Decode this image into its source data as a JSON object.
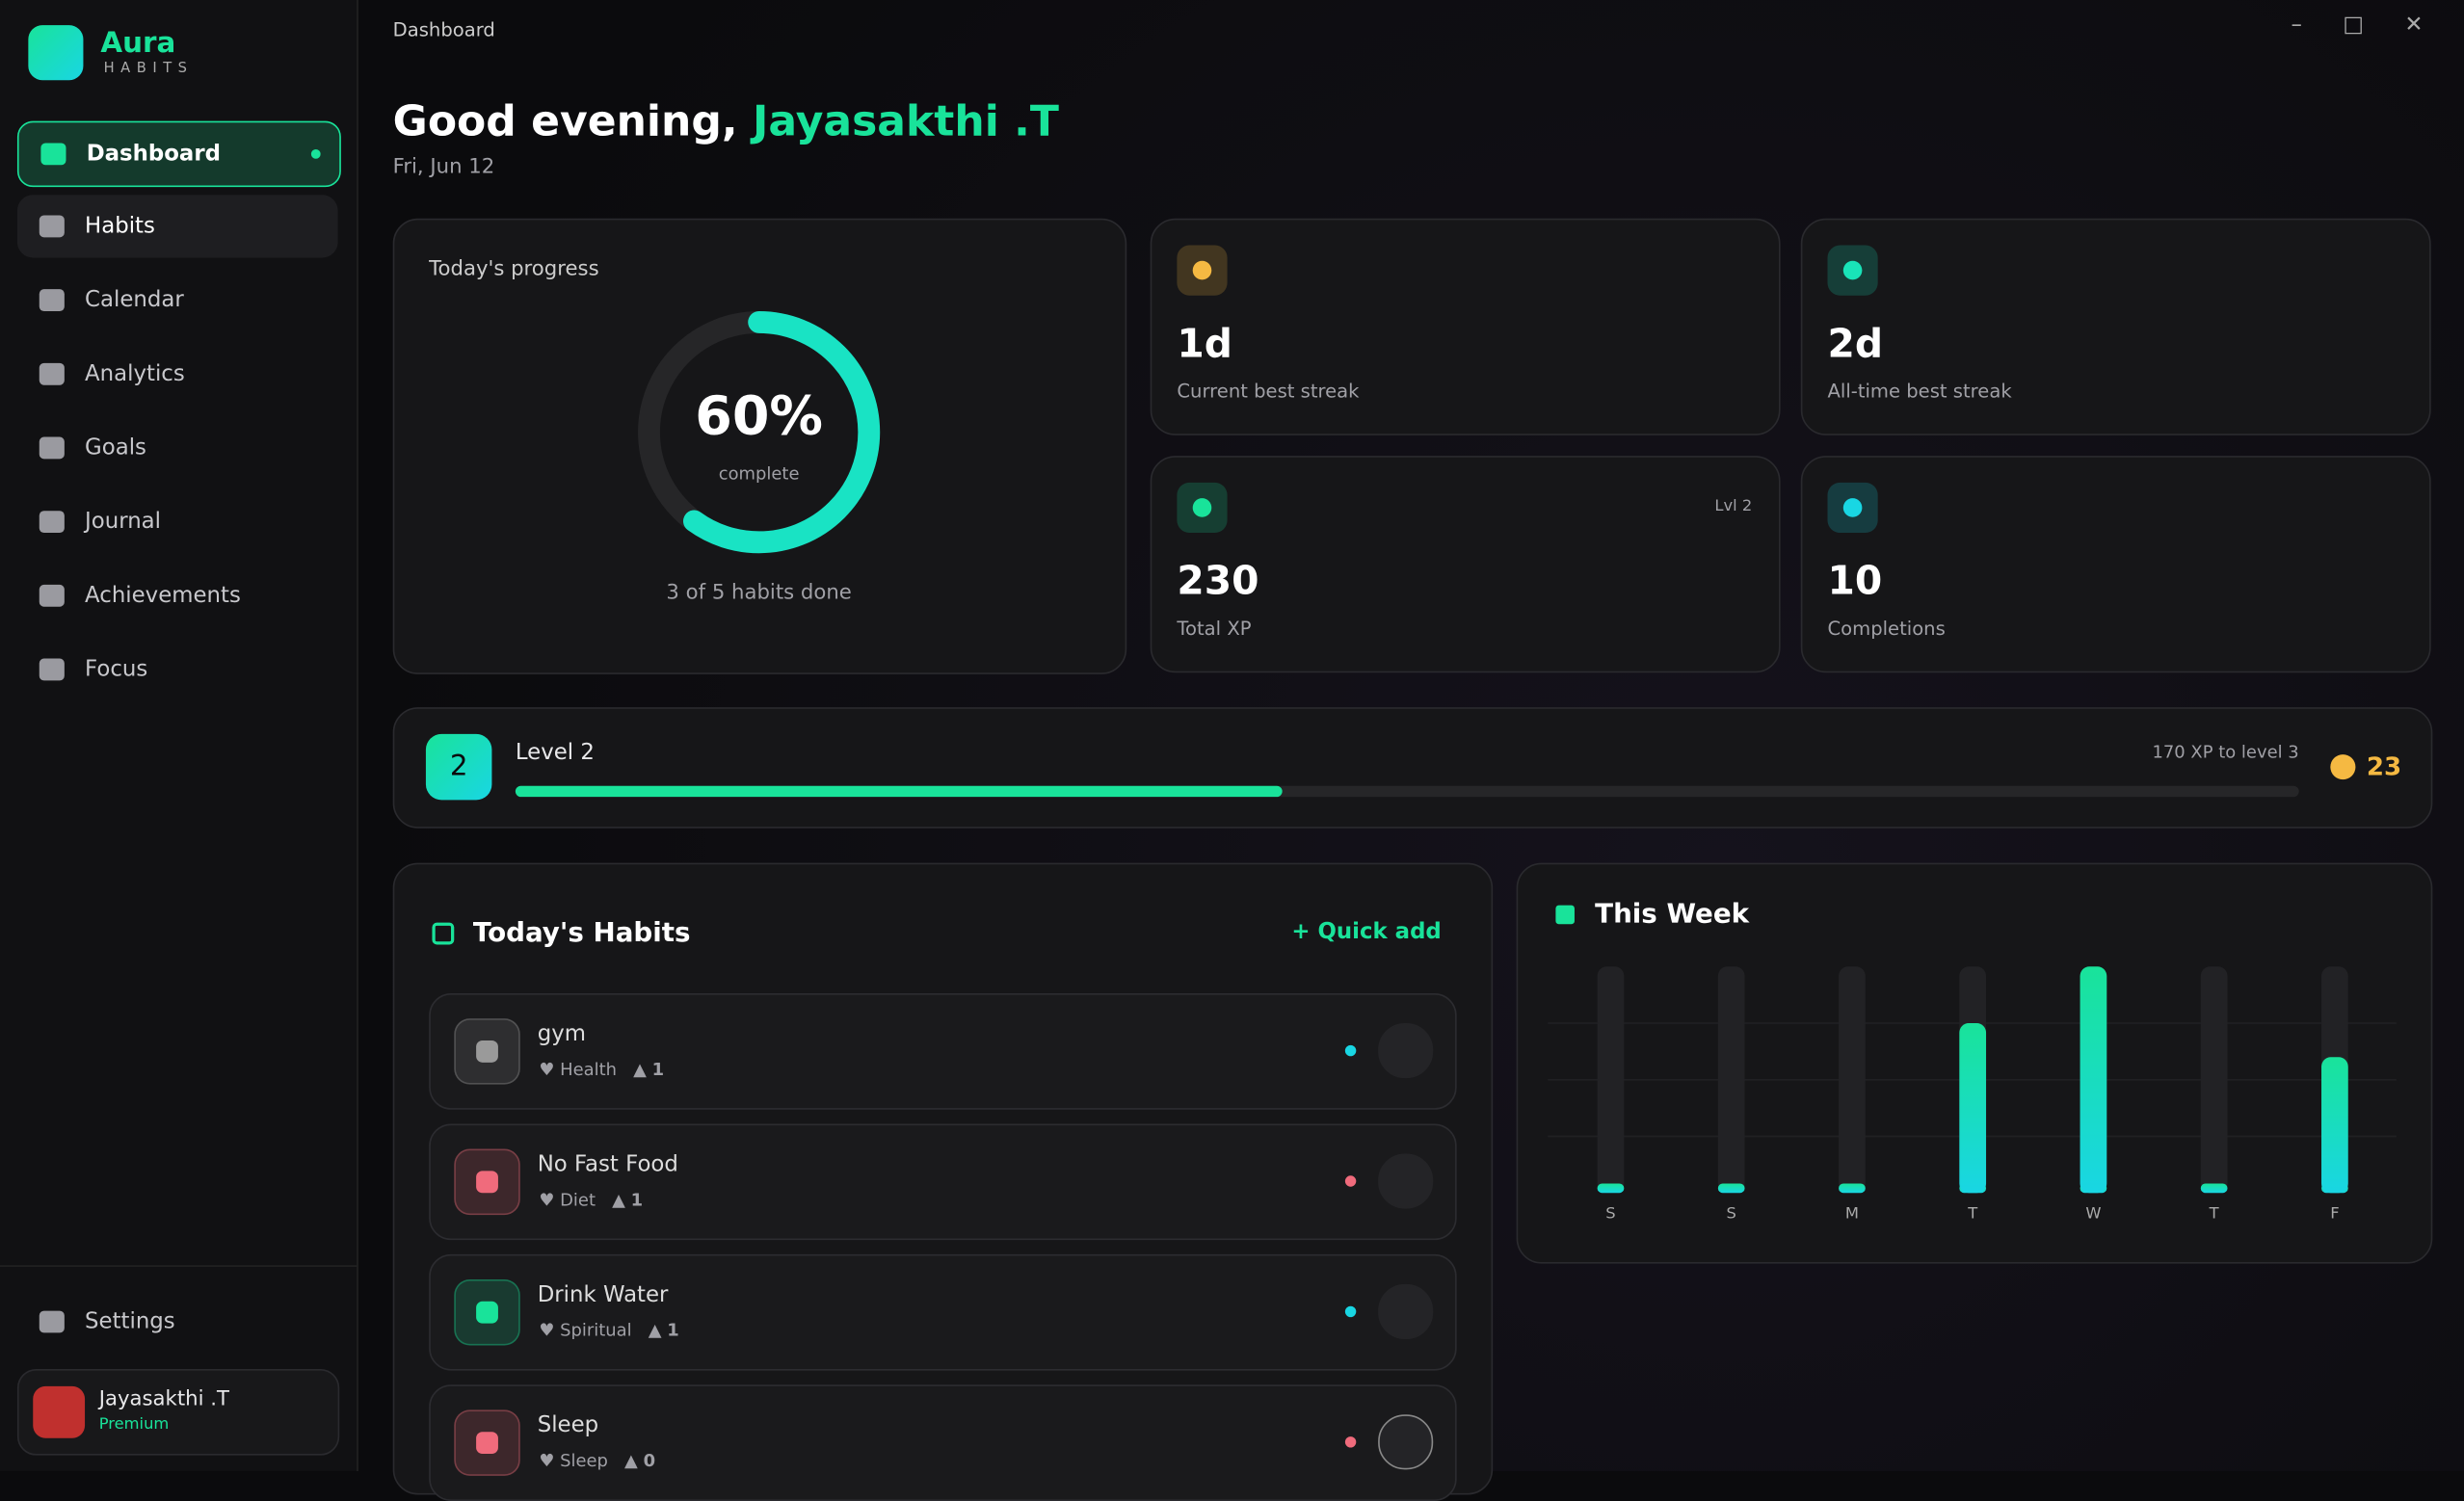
{
  "window": {
    "title": "Dashboard"
  },
  "brand": {
    "name": "Aura",
    "tagline": "HABITS"
  },
  "nav": [
    "Dashboard",
    "Habits",
    "Calendar",
    "Analytics",
    "Goals",
    "Journal",
    "Achievements",
    "Focus"
  ],
  "settings": "Settings",
  "user": {
    "name": "Jayasakthi .T",
    "plan": "Premium"
  },
  "greeting": {
    "text": "Good evening,",
    "name": "Jayasakthi .T",
    "date": "Fri, Jun 12"
  },
  "progress": {
    "title": "Today's progress",
    "value": 60,
    "value_label": "60%",
    "caption": "complete",
    "summary": "3 of 5 habits done"
  },
  "stats": [
    {
      "value": "1d",
      "label": "Current best streak",
      "color": "#f5b942"
    },
    {
      "value": "2d",
      "label": "All-time best streak",
      "color": "#19e3b8"
    },
    {
      "value": "230",
      "label": "Total XP",
      "badge": "Lvl 2",
      "color": "#19e39a"
    },
    {
      "value": "10",
      "label": "Completions",
      "color": "#19d6e3"
    }
  ],
  "level": {
    "badge": "2",
    "title": "Level 2",
    "remaining": "170 XP to level 3",
    "progress": 43,
    "coins": "23"
  },
  "habits": {
    "title": "Today's Habits",
    "action": "Quick add",
    "items": [
      {
        "name": "gym",
        "category": "Health",
        "streak": "1",
        "color": "#9a9a9a",
        "dot": "#19d6e3"
      },
      {
        "name": "No Fast Food",
        "category": "Diet",
        "streak": "1",
        "color": "#f06b7c",
        "dot": "#f06b7c"
      },
      {
        "name": "Drink Water",
        "category": "Spiritual",
        "streak": "1",
        "color": "#19e39a",
        "dot": "#19d6e3"
      },
      {
        "name": "Sleep",
        "category": "Sleep",
        "streak": "0",
        "color": "#f06b7c",
        "dot": "#f06b7c"
      }
    ]
  },
  "chart_data": {
    "type": "bar",
    "title": "This Week",
    "categories": [
      "S",
      "S",
      "M",
      "T",
      "W",
      "T",
      "F"
    ],
    "values": [
      0,
      0,
      0,
      75,
      100,
      0,
      60
    ],
    "ylim": [
      0,
      100
    ]
  }
}
